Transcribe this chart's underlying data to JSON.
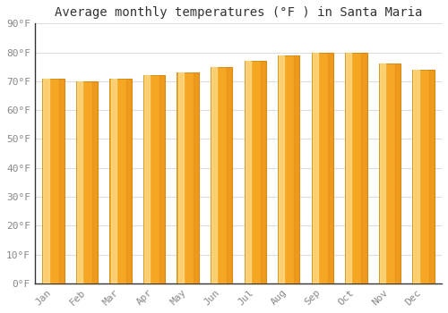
{
  "title": "Average monthly temperatures (°F ) in Santa Maria",
  "months": [
    "Jan",
    "Feb",
    "Mar",
    "Apr",
    "May",
    "Jun",
    "Jul",
    "Aug",
    "Sep",
    "Oct",
    "Nov",
    "Dec"
  ],
  "values": [
    71,
    70,
    71,
    72,
    73,
    75,
    77,
    79,
    80,
    80,
    76,
    74
  ],
  "bar_color_left": "#F5A623",
  "bar_color_right": "#FFD580",
  "bar_edge_color": "#C8870A",
  "background_color": "#FFFFFF",
  "plot_bg_color": "#FFFFFF",
  "grid_color": "#DDDDDD",
  "ylim": [
    0,
    90
  ],
  "yticks": [
    0,
    10,
    20,
    30,
    40,
    50,
    60,
    70,
    80,
    90
  ],
  "ytick_labels": [
    "0°F",
    "10°F",
    "20°F",
    "30°F",
    "40°F",
    "50°F",
    "60°F",
    "70°F",
    "80°F",
    "90°F"
  ],
  "title_fontsize": 10,
  "tick_fontsize": 8,
  "tick_font_color": "#888888"
}
